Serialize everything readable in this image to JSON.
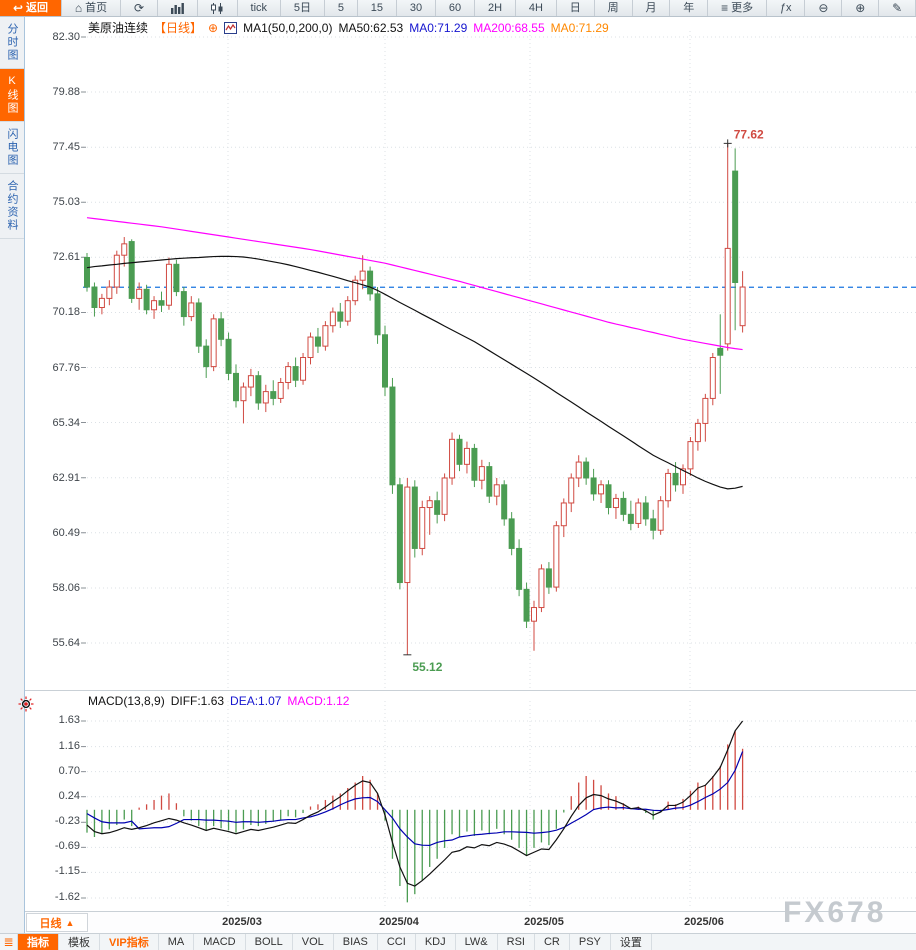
{
  "colors": {
    "accent": "#ff6600",
    "up": "#d04a42",
    "down": "#4b9c52",
    "ma50": "#111111",
    "ma200": "#ff00ff",
    "diff": "#111111",
    "dea": "#0000b0",
    "last_price_line": "#1a75e0",
    "grid": "#dce1e6",
    "blue_text": "#1515cf",
    "magenta_text": "#ff00ff"
  },
  "toolbar": {
    "buttons": [
      {
        "name": "back-button",
        "icon": "back-icon",
        "glyph": "↩",
        "label": "返回",
        "primary": true
      },
      {
        "name": "home-button",
        "icon": "home-icon",
        "glyph": "⌂",
        "label": "首页"
      },
      {
        "name": "refresh-button",
        "icon": "refresh-icon",
        "glyph": "⟳",
        "label": ""
      },
      {
        "name": "time-share-chart-button",
        "icon": "bar-chart-icon",
        "label": ""
      },
      {
        "name": "candle-chart-button",
        "icon": "candle-chart-icon",
        "label": ""
      },
      {
        "name": "period-tick-button",
        "label": "tick"
      },
      {
        "name": "period-5day-button",
        "label": "5日"
      },
      {
        "name": "period-5min-button",
        "label": "5"
      },
      {
        "name": "period-15min-button",
        "label": "15"
      },
      {
        "name": "period-30min-button",
        "label": "30"
      },
      {
        "name": "period-60min-button",
        "label": "60"
      },
      {
        "name": "period-2h-button",
        "label": "2H"
      },
      {
        "name": "period-4h-button",
        "label": "4H"
      },
      {
        "name": "period-day-button",
        "label": "日"
      },
      {
        "name": "period-week-button",
        "label": "周"
      },
      {
        "name": "period-month-button",
        "label": "月"
      },
      {
        "name": "period-year-button",
        "label": "年"
      },
      {
        "name": "more-button",
        "icon": "more-icon",
        "glyph": "≡",
        "label": "更多"
      },
      {
        "name": "formula-button",
        "label": "ƒx"
      },
      {
        "name": "zoom-out-button",
        "icon": "zoom-out-icon",
        "glyph": "⊖",
        "label": ""
      },
      {
        "name": "zoom-in-button",
        "icon": "zoom-in-icon",
        "glyph": "⊕",
        "label": ""
      },
      {
        "name": "draw-pen-button",
        "icon": "pen-icon",
        "glyph": "✎",
        "label": ""
      }
    ]
  },
  "sidebar": {
    "tabs": [
      {
        "name": "sidebar-tab-time-share",
        "label": "分时图",
        "active": false
      },
      {
        "name": "sidebar-tab-kline",
        "label": "K线图",
        "active": true
      },
      {
        "name": "sidebar-tab-lightning",
        "label": "闪电图",
        "active": false
      },
      {
        "name": "sidebar-tab-contract-info",
        "label": "合约资料",
        "active": false
      }
    ]
  },
  "main_header": {
    "title": "美原油连续",
    "period_tag": "【日线】",
    "plus_icon": "⊕",
    "ma_params": "MA1(50,0,200,0)",
    "legend": [
      {
        "label": "MA50:62.53",
        "color": "#111111"
      },
      {
        "label": "MA0:71.29",
        "color": "#1515cf"
      },
      {
        "label": "MA200:68.55",
        "color": "#ff00ff"
      },
      {
        "label": "MA0:71.29",
        "color": "#ff8800"
      }
    ]
  },
  "macd_header": {
    "params": "MACD(13,8,9)",
    "items": [
      {
        "label": "DIFF:1.63",
        "color": "#111111"
      },
      {
        "label": "DEA:1.07",
        "color": "#1515cf"
      },
      {
        "label": "MACD:1.12",
        "color": "#ff00ff"
      }
    ]
  },
  "x_axis": {
    "labels": [
      "2025/03",
      "2025/04",
      "2025/05",
      "2025/06"
    ],
    "period_selector": "日线",
    "selector_arrow": "▲"
  },
  "bottom_tabs": [
    {
      "name": "tab-indicator",
      "label": "指标",
      "selected": true,
      "vip": false
    },
    {
      "name": "tab-template",
      "label": "模板",
      "selected": false,
      "vip": false
    },
    {
      "name": "tab-vip-indicator",
      "label": "VIP指标",
      "selected": false,
      "vip": true
    },
    {
      "name": "tab-ma",
      "label": "MA",
      "selected": false,
      "vip": false
    },
    {
      "name": "tab-macd",
      "label": "MACD",
      "selected": false,
      "vip": false
    },
    {
      "name": "tab-boll",
      "label": "BOLL",
      "selected": false,
      "vip": false
    },
    {
      "name": "tab-vol",
      "label": "VOL",
      "selected": false,
      "vip": false
    },
    {
      "name": "tab-bias",
      "label": "BIAS",
      "selected": false,
      "vip": false
    },
    {
      "name": "tab-cci",
      "label": "CCI",
      "selected": false,
      "vip": false
    },
    {
      "name": "tab-kdj",
      "label": "KDJ",
      "selected": false,
      "vip": false
    },
    {
      "name": "tab-lwr",
      "label": "LW&",
      "selected": false,
      "vip": false
    },
    {
      "name": "tab-rsi",
      "label": "RSI",
      "selected": false,
      "vip": false
    },
    {
      "name": "tab-cr",
      "label": "CR",
      "selected": false,
      "vip": false
    },
    {
      "name": "tab-psy",
      "label": "PSY",
      "selected": false,
      "vip": false
    },
    {
      "name": "tab-settings",
      "label": "设置",
      "selected": false,
      "vip": false
    }
  ],
  "watermark": "FX678",
  "chart_data": {
    "type": "candlestick+macd",
    "instrument": "美原油连续 (US Crude Oil Continuous)",
    "period": "日线 (daily)",
    "price_axis_labels": [
      "82.30",
      "79.88",
      "77.45",
      "75.03",
      "72.61",
      "70.18",
      "67.76",
      "65.34",
      "62.91",
      "60.49",
      "58.06",
      "55.64"
    ],
    "macd_axis_labels": [
      "1.63",
      "1.16",
      "0.70",
      "0.24",
      "-0.23",
      "-0.69",
      "-1.15",
      "-1.62"
    ],
    "high_annotation": {
      "value": "77.62",
      "candle_index": 86
    },
    "low_annotation": {
      "value": "55.12",
      "candle_index": 43
    },
    "last_price_dashline": 71.29,
    "month_gridline_x_svg": [
      203,
      360,
      505,
      665
    ],
    "ohlc": [
      [
        72.6,
        72.8,
        71.1,
        71.3
      ],
      [
        71.3,
        71.5,
        70.0,
        70.4
      ],
      [
        70.4,
        71.0,
        70.1,
        70.8
      ],
      [
        70.8,
        71.6,
        70.5,
        71.3
      ],
      [
        71.3,
        72.9,
        71.0,
        72.7
      ],
      [
        72.7,
        73.5,
        72.2,
        73.2
      ],
      [
        73.3,
        73.4,
        70.6,
        70.8
      ],
      [
        70.8,
        71.5,
        70.3,
        71.2
      ],
      [
        71.2,
        71.4,
        70.1,
        70.3
      ],
      [
        70.3,
        70.9,
        69.9,
        70.7
      ],
      [
        70.7,
        71.1,
        70.2,
        70.5
      ],
      [
        70.5,
        72.6,
        70.3,
        72.3
      ],
      [
        72.3,
        72.5,
        70.9,
        71.1
      ],
      [
        71.1,
        71.3,
        69.6,
        70.0
      ],
      [
        70.0,
        70.9,
        69.8,
        70.6
      ],
      [
        70.6,
        70.8,
        68.4,
        68.7
      ],
      [
        68.7,
        69.0,
        67.3,
        67.8
      ],
      [
        67.8,
        70.1,
        67.6,
        69.9
      ],
      [
        69.9,
        70.2,
        68.7,
        69.0
      ],
      [
        69.0,
        69.3,
        67.2,
        67.5
      ],
      [
        67.5,
        67.9,
        66.0,
        66.3
      ],
      [
        66.3,
        67.1,
        65.3,
        66.9
      ],
      [
        66.9,
        67.7,
        66.5,
        67.4
      ],
      [
        67.4,
        67.6,
        65.9,
        66.2
      ],
      [
        66.2,
        67.0,
        65.8,
        66.7
      ],
      [
        66.7,
        67.2,
        66.1,
        66.4
      ],
      [
        66.4,
        67.3,
        66.2,
        67.1
      ],
      [
        67.1,
        68.0,
        66.8,
        67.8
      ],
      [
        67.8,
        68.2,
        66.9,
        67.2
      ],
      [
        67.2,
        68.4,
        67.0,
        68.2
      ],
      [
        68.2,
        69.3,
        67.9,
        69.1
      ],
      [
        69.1,
        69.5,
        68.4,
        68.7
      ],
      [
        68.7,
        69.8,
        68.5,
        69.6
      ],
      [
        69.6,
        70.4,
        69.3,
        70.2
      ],
      [
        70.2,
        70.6,
        69.5,
        69.8
      ],
      [
        69.8,
        70.9,
        69.6,
        70.7
      ],
      [
        70.7,
        71.8,
        70.5,
        71.6
      ],
      [
        71.6,
        72.7,
        71.2,
        72.0
      ],
      [
        72.0,
        72.2,
        70.7,
        71.0
      ],
      [
        71.0,
        71.3,
        68.8,
        69.2
      ],
      [
        69.2,
        69.6,
        66.5,
        66.9
      ],
      [
        66.9,
        67.3,
        62.2,
        62.6
      ],
      [
        62.6,
        62.9,
        58.0,
        58.3
      ],
      [
        58.3,
        62.9,
        55.12,
        62.5
      ],
      [
        62.5,
        62.8,
        59.4,
        59.8
      ],
      [
        59.8,
        61.9,
        59.5,
        61.6
      ],
      [
        61.6,
        62.1,
        60.4,
        61.9
      ],
      [
        61.9,
        62.3,
        60.9,
        61.3
      ],
      [
        61.3,
        63.1,
        61.0,
        62.9
      ],
      [
        62.9,
        64.9,
        62.6,
        64.6
      ],
      [
        64.6,
        64.8,
        63.2,
        63.5
      ],
      [
        63.5,
        64.5,
        63.1,
        64.2
      ],
      [
        64.2,
        64.4,
        62.5,
        62.8
      ],
      [
        62.8,
        63.7,
        62.4,
        63.4
      ],
      [
        63.4,
        63.6,
        61.8,
        62.1
      ],
      [
        62.1,
        62.9,
        61.7,
        62.6
      ],
      [
        62.6,
        62.8,
        60.8,
        61.1
      ],
      [
        61.1,
        61.4,
        59.5,
        59.8
      ],
      [
        59.8,
        60.2,
        57.7,
        58.0
      ],
      [
        58.0,
        58.3,
        56.3,
        56.6
      ],
      [
        56.6,
        57.5,
        55.3,
        57.2
      ],
      [
        57.2,
        59.1,
        57.0,
        58.9
      ],
      [
        58.9,
        59.2,
        57.8,
        58.1
      ],
      [
        58.1,
        61.0,
        57.9,
        60.8
      ],
      [
        60.8,
        62.0,
        60.3,
        61.8
      ],
      [
        61.8,
        63.1,
        61.4,
        62.9
      ],
      [
        62.9,
        63.9,
        62.5,
        63.6
      ],
      [
        63.6,
        63.8,
        62.6,
        62.9
      ],
      [
        62.9,
        63.3,
        61.9,
        62.2
      ],
      [
        62.2,
        62.8,
        61.8,
        62.6
      ],
      [
        62.6,
        62.8,
        61.3,
        61.6
      ],
      [
        61.6,
        62.2,
        61.1,
        62.0
      ],
      [
        62.0,
        62.3,
        61.0,
        61.3
      ],
      [
        61.3,
        61.9,
        60.6,
        60.9
      ],
      [
        60.9,
        62.0,
        60.7,
        61.8
      ],
      [
        61.8,
        62.1,
        60.8,
        61.1
      ],
      [
        61.1,
        61.5,
        60.2,
        60.6
      ],
      [
        60.6,
        62.1,
        60.4,
        61.9
      ],
      [
        61.9,
        63.3,
        61.6,
        63.1
      ],
      [
        63.1,
        63.6,
        62.3,
        62.6
      ],
      [
        62.6,
        63.5,
        62.2,
        63.3
      ],
      [
        63.3,
        64.7,
        63.0,
        64.5
      ],
      [
        64.5,
        65.5,
        64.1,
        65.3
      ],
      [
        65.3,
        66.6,
        64.5,
        66.4
      ],
      [
        66.4,
        68.4,
        66.1,
        68.2
      ],
      [
        68.6,
        70.1,
        66.6,
        68.3
      ],
      [
        68.8,
        77.62,
        68.5,
        73.0
      ],
      [
        76.4,
        77.4,
        69.4,
        71.5
      ],
      [
        69.6,
        72.0,
        69.3,
        71.3
      ]
    ],
    "ma50": [
      72.15,
      72.2,
      72.23,
      72.27,
      72.3,
      72.34,
      72.37,
      72.4,
      72.43,
      72.46,
      72.49,
      72.52,
      72.55,
      72.57,
      72.59,
      72.6,
      72.62,
      72.64,
      72.65,
      72.65,
      72.64,
      72.62,
      72.58,
      72.53,
      72.47,
      72.41,
      72.35,
      72.28,
      72.2,
      72.12,
      72.03,
      71.95,
      71.86,
      71.77,
      71.68,
      71.58,
      71.49,
      71.4,
      71.3,
      71.15,
      70.98,
      70.8,
      70.62,
      70.45,
      70.28,
      70.1,
      69.93,
      69.76,
      69.58,
      69.41,
      69.24,
      69.07,
      68.9,
      68.7,
      68.5,
      68.3,
      68.1,
      67.9,
      67.7,
      67.5,
      67.3,
      67.09,
      66.88,
      66.66,
      66.45,
      66.24,
      66.03,
      65.81,
      65.6,
      65.39,
      65.17,
      64.96,
      64.75,
      64.54,
      64.32,
      64.11,
      63.9,
      63.73,
      63.57,
      63.4,
      63.23,
      63.07,
      62.9,
      62.75,
      62.62,
      62.5,
      62.42,
      62.45,
      62.53
    ],
    "ma200": [
      74.35,
      74.31,
      74.27,
      74.23,
      74.19,
      74.15,
      74.11,
      74.07,
      74.03,
      73.99,
      73.95,
      73.9,
      73.85,
      73.8,
      73.75,
      73.7,
      73.65,
      73.6,
      73.55,
      73.5,
      73.45,
      73.4,
      73.35,
      73.3,
      73.25,
      73.2,
      73.15,
      73.1,
      73.05,
      73.0,
      72.95,
      72.89,
      72.83,
      72.77,
      72.71,
      72.65,
      72.59,
      72.53,
      72.47,
      72.41,
      72.35,
      72.27,
      72.19,
      72.11,
      72.03,
      71.95,
      71.87,
      71.79,
      71.71,
      71.63,
      71.55,
      71.46,
      71.37,
      71.28,
      71.19,
      71.1,
      71.01,
      70.92,
      70.83,
      70.74,
      70.65,
      70.56,
      70.47,
      70.38,
      70.29,
      70.2,
      70.11,
      70.02,
      69.93,
      69.84,
      69.75,
      69.67,
      69.6,
      69.52,
      69.45,
      69.37,
      69.3,
      69.22,
      69.15,
      69.07,
      69.0,
      68.94,
      68.88,
      68.82,
      68.76,
      68.7,
      68.64,
      68.59,
      68.55
    ],
    "macd": {
      "diff": [
        -0.28,
        -0.4,
        -0.44,
        -0.42,
        -0.38,
        -0.33,
        -0.36,
        -0.33,
        -0.29,
        -0.24,
        -0.2,
        -0.16,
        -0.19,
        -0.24,
        -0.28,
        -0.33,
        -0.38,
        -0.34,
        -0.37,
        -0.4,
        -0.44,
        -0.4,
        -0.36,
        -0.38,
        -0.35,
        -0.32,
        -0.28,
        -0.24,
        -0.25,
        -0.18,
        -0.1,
        -0.04,
        0.05,
        0.15,
        0.24,
        0.35,
        0.45,
        0.53,
        0.5,
        0.3,
        -0.1,
        -0.6,
        -1.05,
        -1.35,
        -1.4,
        -1.3,
        -1.18,
        -1.05,
        -0.92,
        -0.78,
        -0.75,
        -0.68,
        -0.7,
        -0.64,
        -0.66,
        -0.6,
        -0.63,
        -0.68,
        -0.76,
        -0.84,
        -0.78,
        -0.72,
        -0.73,
        -0.55,
        -0.35,
        -0.12,
        0.08,
        0.22,
        0.28,
        0.26,
        0.2,
        0.16,
        0.1,
        0.02,
        0.04,
        -0.02,
        -0.1,
        -0.04,
        0.08,
        0.08,
        0.14,
        0.26,
        0.4,
        0.45,
        0.6,
        0.78,
        1.1,
        1.45,
        1.63
      ],
      "hist": [
        -0.42,
        -0.5,
        -0.44,
        -0.36,
        -0.28,
        -0.18,
        -0.3,
        0.04,
        0.1,
        0.18,
        0.26,
        0.3,
        0.12,
        -0.12,
        -0.2,
        -0.3,
        -0.38,
        -0.3,
        -0.34,
        -0.38,
        -0.42,
        -0.36,
        -0.28,
        -0.3,
        -0.26,
        -0.22,
        -0.18,
        -0.12,
        -0.14,
        -0.06,
        0.06,
        0.1,
        0.18,
        0.26,
        0.3,
        0.4,
        0.5,
        0.62,
        0.55,
        0.3,
        -0.2,
        -0.9,
        -1.4,
        -1.7,
        -1.55,
        -1.3,
        -1.05,
        -0.9,
        -0.7,
        -0.45,
        -0.5,
        -0.4,
        -0.48,
        -0.38,
        -0.45,
        -0.35,
        -0.45,
        -0.55,
        -0.7,
        -0.85,
        -0.7,
        -0.6,
        -0.65,
        -0.35,
        -0.05,
        0.25,
        0.5,
        0.62,
        0.55,
        0.45,
        0.3,
        0.25,
        0.12,
        0.0,
        0.06,
        -0.06,
        -0.18,
        -0.05,
        0.15,
        0.1,
        0.2,
        0.35,
        0.5,
        0.45,
        0.62,
        0.8,
        1.2,
        1.45,
        1.12
      ]
    }
  }
}
